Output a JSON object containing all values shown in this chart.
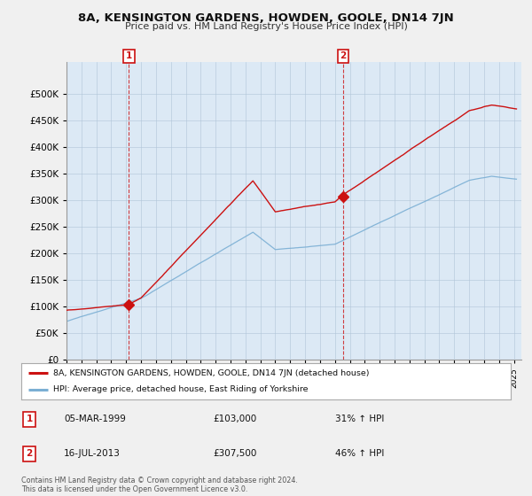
{
  "title": "8A, KENSINGTON GARDENS, HOWDEN, GOOLE, DN14 7JN",
  "subtitle": "Price paid vs. HM Land Registry's House Price Index (HPI)",
  "hpi_label": "HPI: Average price, detached house, East Riding of Yorkshire",
  "property_label": "8A, KENSINGTON GARDENS, HOWDEN, GOOLE, DN14 7JN (detached house)",
  "hpi_color": "#7bafd4",
  "property_color": "#cc1111",
  "marker_color": "#cc1111",
  "background_color": "#f0f0f0",
  "plot_bg_color": "#dce9f5",
  "sale1_date": 1999.18,
  "sale1_price": 103000,
  "sale1_label": "1",
  "sale1_text": "05-MAR-1999",
  "sale1_price_text": "£103,000",
  "sale1_hpi_text": "31% ↑ HPI",
  "sale2_date": 2013.54,
  "sale2_price": 307500,
  "sale2_label": "2",
  "sale2_text": "16-JUL-2013",
  "sale2_price_text": "£307,500",
  "sale2_hpi_text": "46% ↑ HPI",
  "ylim_min": 0,
  "ylim_max": 560000,
  "footer": "Contains HM Land Registry data © Crown copyright and database right 2024.\nThis data is licensed under the Open Government Licence v3.0."
}
